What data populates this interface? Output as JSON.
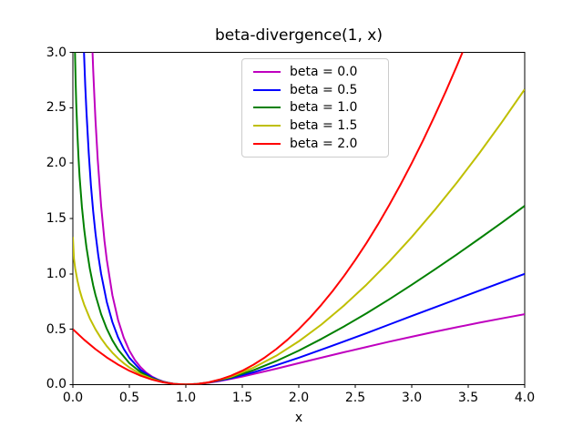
{
  "chart_data": {
    "type": "line",
    "title": "beta-divergence(1, x)",
    "xlabel": "x",
    "ylabel": "",
    "xlim": [
      0.0,
      4.0
    ],
    "ylim": [
      0.0,
      3.0
    ],
    "xticks": [
      "0.0",
      "0.5",
      "1.0",
      "1.5",
      "2.0",
      "2.5",
      "3.0",
      "3.5",
      "4.0"
    ],
    "yticks": [
      "0.0",
      "0.5",
      "1.0",
      "1.5",
      "2.0",
      "2.5",
      "3.0"
    ],
    "grid": false,
    "legend_position": "upper center",
    "axis_color": "#000000",
    "background_color": "#ffffff",
    "legend_border_color": "#cccccc",
    "series": [
      {
        "name": "beta = 0.0",
        "color": "#bf00bf",
        "points": [
          [
            0.165,
            3.259
          ],
          [
            0.17,
            3.11
          ],
          [
            0.18,
            2.841
          ],
          [
            0.19,
            2.602
          ],
          [
            0.2,
            2.391
          ],
          [
            0.22,
            2.031
          ],
          [
            0.25,
            1.614
          ],
          [
            0.28,
            1.298
          ],
          [
            0.3,
            1.129
          ],
          [
            0.35,
            0.807
          ],
          [
            0.4,
            0.584
          ],
          [
            0.45,
            0.424
          ],
          [
            0.5,
            0.307
          ],
          [
            0.55,
            0.22
          ],
          [
            0.6,
            0.156
          ],
          [
            0.65,
            0.108
          ],
          [
            0.7,
            0.072
          ],
          [
            0.75,
            0.046
          ],
          [
            0.8,
            0.027
          ],
          [
            0.85,
            0.014
          ],
          [
            0.9,
            0.006
          ],
          [
            0.95,
            0.001
          ],
          [
            1.0,
            0.0
          ],
          [
            1.05,
            0.001
          ],
          [
            1.1,
            0.004
          ],
          [
            1.2,
            0.016
          ],
          [
            1.3,
            0.032
          ],
          [
            1.4,
            0.051
          ],
          [
            1.5,
            0.072
          ],
          [
            1.6,
            0.095
          ],
          [
            1.8,
            0.143
          ],
          [
            2.0,
            0.193
          ],
          [
            2.2,
            0.243
          ],
          [
            2.4,
            0.292
          ],
          [
            2.6,
            0.34
          ],
          [
            2.8,
            0.387
          ],
          [
            3.0,
            0.432
          ],
          [
            3.2,
            0.476
          ],
          [
            3.4,
            0.518
          ],
          [
            3.6,
            0.559
          ],
          [
            3.8,
            0.598
          ],
          [
            4.0,
            0.636
          ]
        ]
      },
      {
        "name": "beta = 0.5",
        "color": "#0000ff",
        "points": [
          [
            0.092,
            3.2
          ],
          [
            0.095,
            3.105
          ],
          [
            0.1,
            2.957
          ],
          [
            0.11,
            2.694
          ],
          [
            0.12,
            2.466
          ],
          [
            0.14,
            2.094
          ],
          [
            0.16,
            1.8
          ],
          [
            0.18,
            1.563
          ],
          [
            0.2,
            1.367
          ],
          [
            0.225,
            1.165
          ],
          [
            0.25,
            1.0
          ],
          [
            0.3,
            0.747
          ],
          [
            0.35,
            0.564
          ],
          [
            0.4,
            0.427
          ],
          [
            0.45,
            0.323
          ],
          [
            0.5,
            0.243
          ],
          [
            0.6,
            0.131
          ],
          [
            0.7,
            0.064
          ],
          [
            0.8,
            0.025
          ],
          [
            0.9,
            0.006
          ],
          [
            1.0,
            0.0
          ],
          [
            1.1,
            0.005
          ],
          [
            1.2,
            0.017
          ],
          [
            1.4,
            0.057
          ],
          [
            1.6,
            0.111
          ],
          [
            1.8,
            0.174
          ],
          [
            2.0,
            0.243
          ],
          [
            2.2,
            0.315
          ],
          [
            2.4,
            0.389
          ],
          [
            2.6,
            0.465
          ],
          [
            2.8,
            0.542
          ],
          [
            3.0,
            0.619
          ],
          [
            3.2,
            0.696
          ],
          [
            3.4,
            0.772
          ],
          [
            3.6,
            0.849
          ],
          [
            3.8,
            0.925
          ],
          [
            4.0,
            1.0
          ]
        ]
      },
      {
        "name": "beta = 1.0",
        "color": "#008000",
        "points": [
          [
            0.017,
            3.092
          ],
          [
            0.02,
            2.932
          ],
          [
            0.025,
            2.714
          ],
          [
            0.03,
            2.537
          ],
          [
            0.04,
            2.259
          ],
          [
            0.05,
            2.046
          ],
          [
            0.06,
            1.873
          ],
          [
            0.08,
            1.606
          ],
          [
            0.1,
            1.403
          ],
          [
            0.12,
            1.24
          ],
          [
            0.15,
            1.047
          ],
          [
            0.18,
            0.895
          ],
          [
            0.2,
            0.809
          ],
          [
            0.25,
            0.636
          ],
          [
            0.3,
            0.504
          ],
          [
            0.35,
            0.4
          ],
          [
            0.4,
            0.316
          ],
          [
            0.5,
            0.193
          ],
          [
            0.6,
            0.111
          ],
          [
            0.7,
            0.057
          ],
          [
            0.8,
            0.023
          ],
          [
            0.9,
            0.005
          ],
          [
            1.0,
            0.0
          ],
          [
            1.1,
            0.005
          ],
          [
            1.2,
            0.018
          ],
          [
            1.4,
            0.064
          ],
          [
            1.6,
            0.13
          ],
          [
            1.8,
            0.212
          ],
          [
            2.0,
            0.307
          ],
          [
            2.2,
            0.412
          ],
          [
            2.4,
            0.525
          ],
          [
            2.6,
            0.644
          ],
          [
            2.8,
            0.77
          ],
          [
            3.0,
            0.901
          ],
          [
            3.2,
            1.037
          ],
          [
            3.4,
            1.176
          ],
          [
            3.6,
            1.319
          ],
          [
            3.8,
            1.465
          ],
          [
            4.0,
            1.614
          ]
        ]
      },
      {
        "name": "beta = 1.5",
        "color": "#bfbf00",
        "points": [
          [
            0.0,
            1.333
          ],
          [
            0.01,
            1.134
          ],
          [
            0.02,
            1.052
          ],
          [
            0.04,
            0.939
          ],
          [
            0.06,
            0.853
          ],
          [
            0.08,
            0.783
          ],
          [
            0.1,
            0.722
          ],
          [
            0.15,
            0.597
          ],
          [
            0.2,
            0.499
          ],
          [
            0.25,
            0.417
          ],
          [
            0.3,
            0.347
          ],
          [
            0.35,
            0.288
          ],
          [
            0.4,
            0.237
          ],
          [
            0.45,
            0.193
          ],
          [
            0.5,
            0.155
          ],
          [
            0.6,
            0.094
          ],
          [
            0.7,
            0.051
          ],
          [
            0.8,
            0.021
          ],
          [
            0.9,
            0.005
          ],
          [
            1.0,
            0.0
          ],
          [
            1.1,
            0.005
          ],
          [
            1.2,
            0.019
          ],
          [
            1.4,
            0.071
          ],
          [
            1.6,
            0.153
          ],
          [
            1.8,
            0.26
          ],
          [
            2.0,
            0.391
          ],
          [
            2.2,
            0.542
          ],
          [
            2.4,
            0.714
          ],
          [
            2.6,
            0.903
          ],
          [
            2.8,
            1.11
          ],
          [
            3.0,
            1.333
          ],
          [
            3.2,
            1.572
          ],
          [
            3.4,
            1.825
          ],
          [
            3.6,
            2.092
          ],
          [
            3.8,
            2.373
          ],
          [
            4.0,
            2.667
          ]
        ]
      },
      {
        "name": "beta = 2.0",
        "color": "#ff0000",
        "points": [
          [
            0.0,
            0.5
          ],
          [
            0.1,
            0.405
          ],
          [
            0.2,
            0.32
          ],
          [
            0.3,
            0.245
          ],
          [
            0.4,
            0.18
          ],
          [
            0.5,
            0.125
          ],
          [
            0.6,
            0.08
          ],
          [
            0.7,
            0.045
          ],
          [
            0.8,
            0.02
          ],
          [
            0.9,
            0.005
          ],
          [
            1.0,
            0.0
          ],
          [
            1.1,
            0.005
          ],
          [
            1.2,
            0.02
          ],
          [
            1.3,
            0.045
          ],
          [
            1.4,
            0.08
          ],
          [
            1.5,
            0.125
          ],
          [
            1.6,
            0.18
          ],
          [
            1.7,
            0.245
          ],
          [
            1.8,
            0.32
          ],
          [
            1.9,
            0.405
          ],
          [
            2.0,
            0.5
          ],
          [
            2.1,
            0.605
          ],
          [
            2.2,
            0.72
          ],
          [
            2.3,
            0.845
          ],
          [
            2.4,
            0.98
          ],
          [
            2.5,
            1.125
          ],
          [
            2.6,
            1.28
          ],
          [
            2.7,
            1.445
          ],
          [
            2.8,
            1.62
          ],
          [
            2.9,
            1.805
          ],
          [
            3.0,
            2.0
          ],
          [
            3.1,
            2.205
          ],
          [
            3.2,
            2.42
          ],
          [
            3.3,
            2.645
          ],
          [
            3.4,
            2.88
          ],
          [
            3.5,
            3.125
          ]
        ]
      }
    ]
  }
}
